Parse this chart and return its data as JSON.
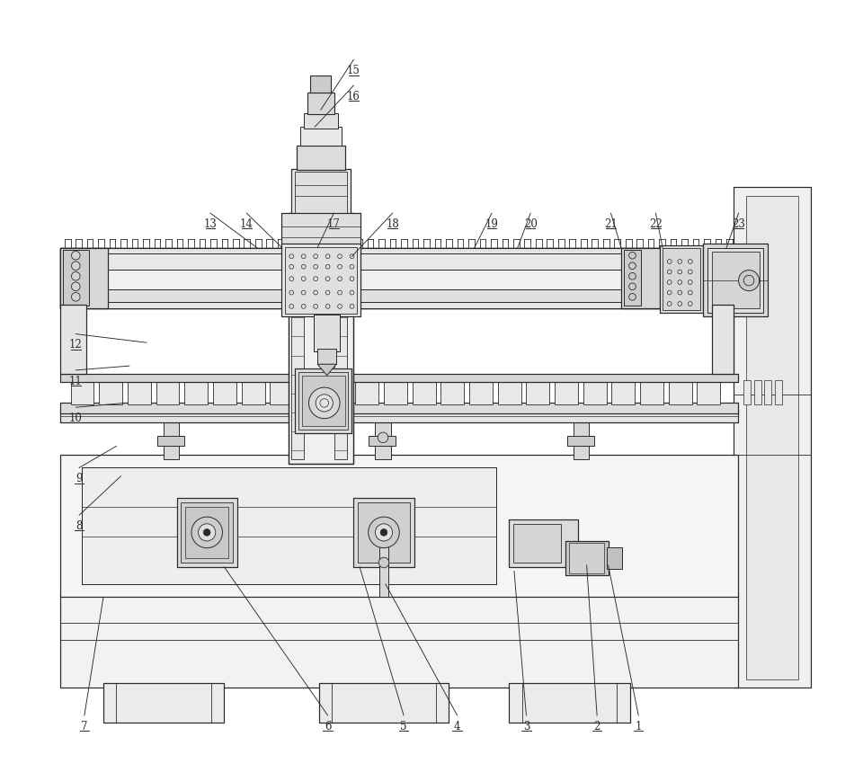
{
  "bg_color": "#ffffff",
  "line_color": "#2a2a2a",
  "figure_width": 9.5,
  "figure_height": 8.7,
  "dpi": 100
}
